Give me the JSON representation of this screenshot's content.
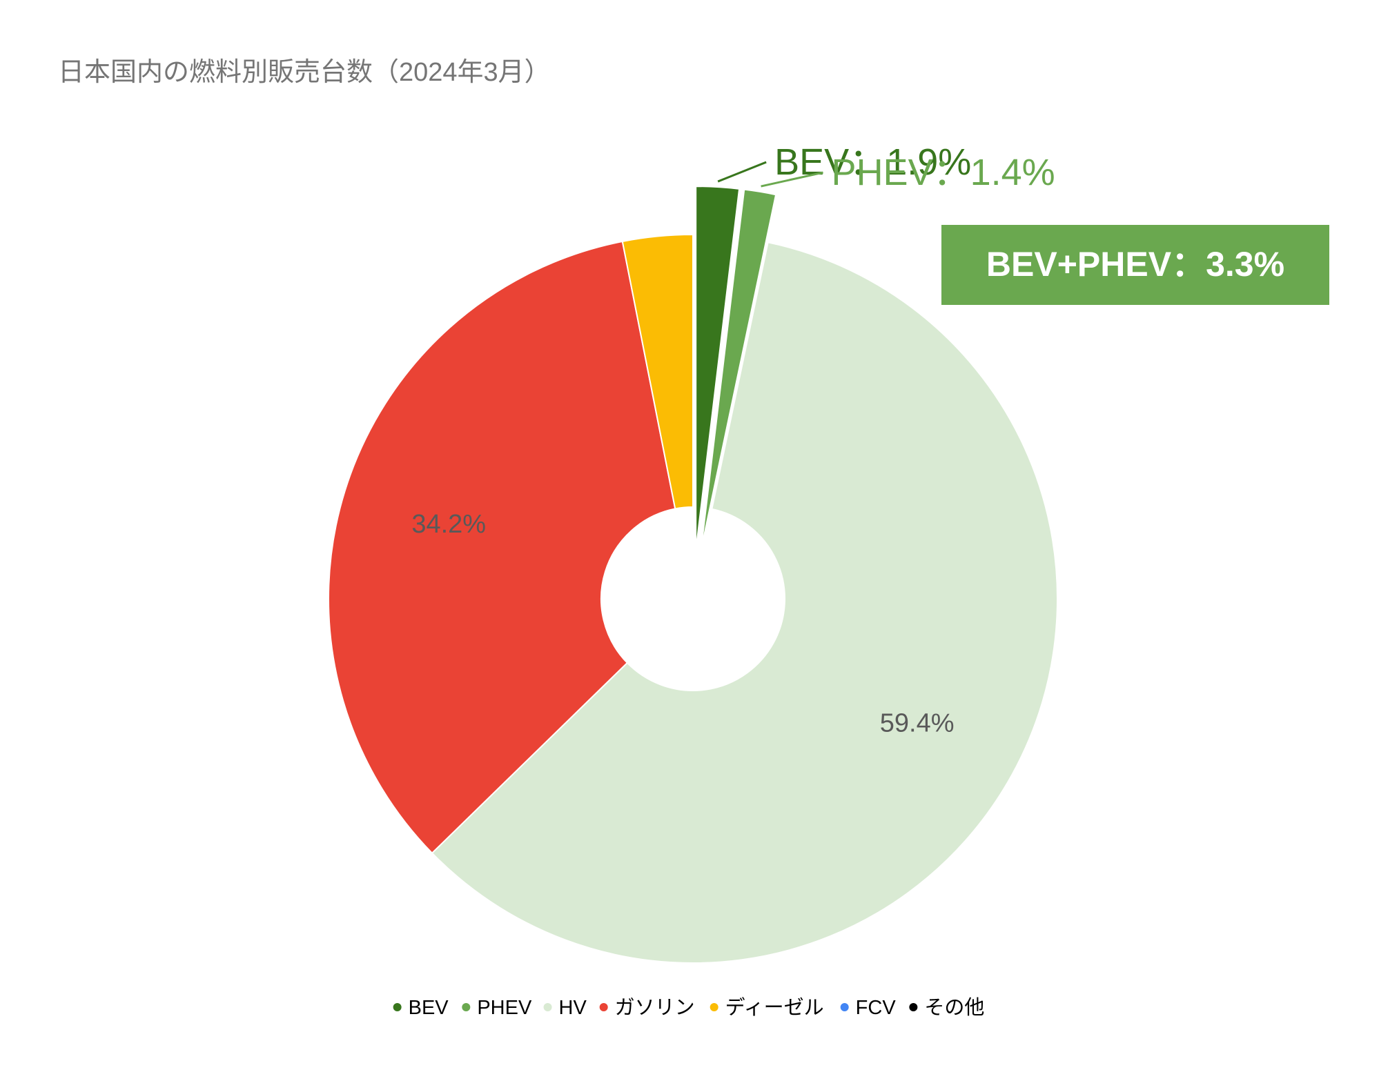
{
  "chart_data": {
    "type": "pie",
    "title": "日本国内の燃料別販売台数（2024年3月）",
    "hole": true,
    "slices": [
      {
        "name": "BEV",
        "value": 1.9,
        "color": "#38761d",
        "exploded": true
      },
      {
        "name": "PHEV",
        "value": 1.4,
        "color": "#6aa84f",
        "exploded": true
      },
      {
        "name": "HV",
        "value": 59.4,
        "color": "#d9ead3",
        "exploded": false
      },
      {
        "name": "ガソリン",
        "value": 34.2,
        "color": "#ea4335",
        "exploded": false
      },
      {
        "name": "ディーゼル",
        "value": 3.1,
        "color": "#fbbc04",
        "exploded": false
      },
      {
        "name": "FCV",
        "value": 0,
        "color": "#4285f4",
        "exploded": false
      },
      {
        "name": "その他",
        "value": 0,
        "color": "#000000",
        "exploded": false
      }
    ],
    "data_labels": [
      {
        "slice": "HV",
        "text": "59.4%",
        "color": "#595959"
      },
      {
        "slice": "ガソリン",
        "text": "34.2%",
        "color": "#595959"
      }
    ],
    "callouts": [
      {
        "slice": "BEV",
        "text": "BEV：1.9%",
        "color": "#38761d"
      },
      {
        "slice": "PHEV",
        "text": "PHEV：1.4%",
        "color": "#6aa84f"
      }
    ],
    "summary_box": {
      "text": "BEV+PHEV：3.3%",
      "background": "#6aa84f",
      "text_color": "#ffffff"
    },
    "legend": {
      "placement": "bottom",
      "items": [
        "BEV",
        "PHEV",
        "HV",
        "ガソリン",
        "ディーゼル",
        "FCV",
        "その他"
      ]
    }
  }
}
